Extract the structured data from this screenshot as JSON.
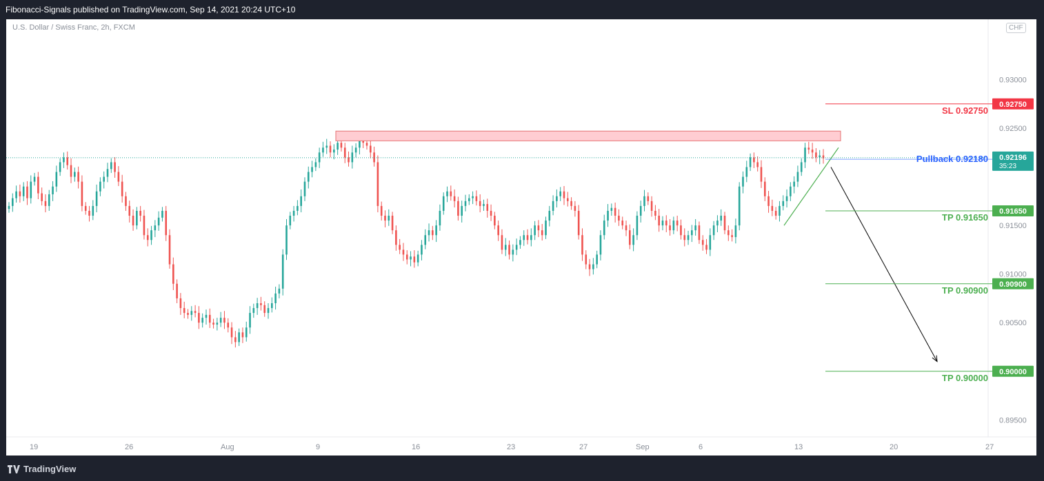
{
  "header": {
    "publisher": "Fibonacci-Signals published on TradingView.com, Sep 14, 2021 20:24 UTC+10"
  },
  "footer": {
    "brand": "TradingView",
    "logo_icon": "tradingview-logo-icon"
  },
  "chart_data": {
    "type": "candlestick",
    "symbol": "U.S. Dollar / Swiss Franc, 2h, FXCM",
    "currency": "CHF",
    "ylim": [
      0.89325,
      0.9362
    ],
    "y_ticks": [
      "0.93000",
      "0.92500",
      "0.91500",
      "0.91000",
      "0.90500",
      "0.89500"
    ],
    "x_ticks": [
      "19",
      "26",
      "Aug",
      "9",
      "16",
      "23",
      "27",
      "Sep",
      "6",
      "13",
      "20",
      "27"
    ],
    "colors": {
      "up": "#26a69a",
      "down": "#ef5350",
      "sl": "#f23645",
      "tp": "#4caf50",
      "pullback": "#2962ff",
      "arrow": "#000000",
      "zone_fill": "#ffcdd2",
      "zone_border": "#e57373"
    },
    "current_price": {
      "value": "0.92196",
      "countdown": "35:23"
    },
    "levels": [
      {
        "label": "SL 0.92750",
        "price": "0.92750",
        "value": 0.9275,
        "kind": "sl"
      },
      {
        "label": "Pullback 0.92180",
        "price": "0.92180",
        "value": 0.9218,
        "kind": "pullback"
      },
      {
        "label": "TP 0.91650",
        "price": "0.91650",
        "value": 0.9165,
        "kind": "tp"
      },
      {
        "label": "TP 0.90900",
        "price": "0.90900",
        "value": 0.909,
        "kind": "tp"
      },
      {
        "label": "TP 0.90000",
        "price": "0.90000",
        "value": 0.9,
        "kind": "tp"
      }
    ],
    "resistance_zone": {
      "low": 0.9237,
      "high": 0.9247
    },
    "trendline": {
      "from": 0.915,
      "to": 0.923
    },
    "forecast_arrow": {
      "from": 0.921,
      "to": 0.901
    },
    "series": [
      {
        "name": "close",
        "values": [
          0.917,
          0.9178,
          0.9185,
          0.918,
          0.919,
          0.9178,
          0.9195,
          0.92,
          0.9183,
          0.9175,
          0.917,
          0.9182,
          0.919,
          0.9205,
          0.9215,
          0.922,
          0.9212,
          0.92,
          0.9205,
          0.9195,
          0.917,
          0.9165,
          0.916,
          0.917,
          0.9185,
          0.9195,
          0.92,
          0.9208,
          0.9215,
          0.9205,
          0.9195,
          0.918,
          0.917,
          0.916,
          0.915,
          0.9165,
          0.916,
          0.914,
          0.9135,
          0.9145,
          0.915,
          0.9158,
          0.9165,
          0.914,
          0.911,
          0.909,
          0.9075,
          0.9065,
          0.906,
          0.9058,
          0.9062,
          0.906,
          0.905,
          0.9055,
          0.9058,
          0.905,
          0.9048,
          0.905,
          0.9055,
          0.905,
          0.9045,
          0.9035,
          0.903,
          0.904,
          0.9035,
          0.9045,
          0.906,
          0.9065,
          0.907,
          0.9068,
          0.906,
          0.9065,
          0.907,
          0.908,
          0.9085,
          0.912,
          0.915,
          0.916,
          0.9165,
          0.917,
          0.918,
          0.9195,
          0.9205,
          0.921,
          0.9215,
          0.9225,
          0.923,
          0.9232,
          0.9225,
          0.9228,
          0.9235,
          0.923,
          0.922,
          0.9215,
          0.9225,
          0.923,
          0.9238,
          0.9235,
          0.9232,
          0.9225,
          0.9215,
          0.917,
          0.916,
          0.9155,
          0.916,
          0.9145,
          0.913,
          0.9125,
          0.912,
          0.9115,
          0.9118,
          0.9112,
          0.912,
          0.913,
          0.914,
          0.9145,
          0.914,
          0.915,
          0.9165,
          0.918,
          0.9185,
          0.918,
          0.9175,
          0.916,
          0.917,
          0.9175,
          0.9178,
          0.918,
          0.9175,
          0.917,
          0.9172,
          0.9165,
          0.916,
          0.915,
          0.914,
          0.9125,
          0.913,
          0.912,
          0.9125,
          0.913,
          0.9135,
          0.914,
          0.9135,
          0.914,
          0.915,
          0.9145,
          0.914,
          0.9155,
          0.9165,
          0.9175,
          0.918,
          0.9185,
          0.9178,
          0.9175,
          0.917,
          0.9165,
          0.914,
          0.912,
          0.911,
          0.9105,
          0.911,
          0.912,
          0.914,
          0.9155,
          0.9165,
          0.9168,
          0.916,
          0.9155,
          0.915,
          0.9145,
          0.913,
          0.914,
          0.916,
          0.917,
          0.918,
          0.9175,
          0.9165,
          0.916,
          0.915,
          0.9155,
          0.915,
          0.9145,
          0.9155,
          0.915,
          0.914,
          0.9135,
          0.914,
          0.9145,
          0.915,
          0.9135,
          0.913,
          0.9125,
          0.914,
          0.915,
          0.9155,
          0.916,
          0.9145,
          0.914,
          0.9138,
          0.915,
          0.919,
          0.92,
          0.921,
          0.922,
          0.9215,
          0.921,
          0.9195,
          0.918,
          0.917,
          0.9165,
          0.916,
          0.917,
          0.9175,
          0.918,
          0.919,
          0.9195,
          0.9205,
          0.9215,
          0.923,
          0.9228,
          0.9225,
          0.922,
          0.9222,
          0.9219
        ]
      }
    ]
  }
}
